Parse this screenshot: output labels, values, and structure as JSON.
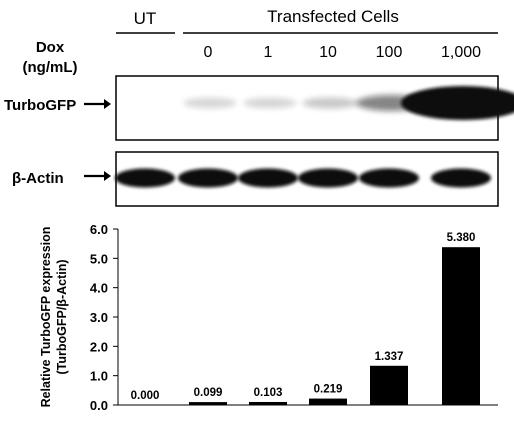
{
  "header": {
    "untreated_label": "UT",
    "transfected_label": "Transfected Cells",
    "dose_label_line1": "Dox",
    "dose_label_line2": "(ng/mL)",
    "doses": [
      "0",
      "1",
      "10",
      "100",
      "1,000"
    ]
  },
  "blots": {
    "target_label": "TurboGFP",
    "loading_label": "β-Actin",
    "target_relative_band_intensity": [
      0.0,
      0.099,
      0.103,
      0.219,
      1.337,
      5.38
    ]
  },
  "chart_data": {
    "type": "bar",
    "categories": [
      "UT",
      "0",
      "1",
      "10",
      "100",
      "1,000"
    ],
    "values": [
      0.0,
      0.099,
      0.103,
      0.219,
      1.337,
      5.38
    ],
    "value_labels": [
      "0.000",
      "0.099",
      "0.103",
      "0.219",
      "1.337",
      "5.380"
    ],
    "title": "",
    "xlabel": "",
    "ylabel_line1": "Relative TurboGFP expression",
    "ylabel_line2": "(TurboGFP/β-Actin)",
    "ylim": [
      0,
      6
    ],
    "yticks": [
      "0.0",
      "1.0",
      "2.0",
      "3.0",
      "4.0",
      "5.0",
      "6.0"
    ],
    "bar_color": "#000000",
    "grid": false
  }
}
